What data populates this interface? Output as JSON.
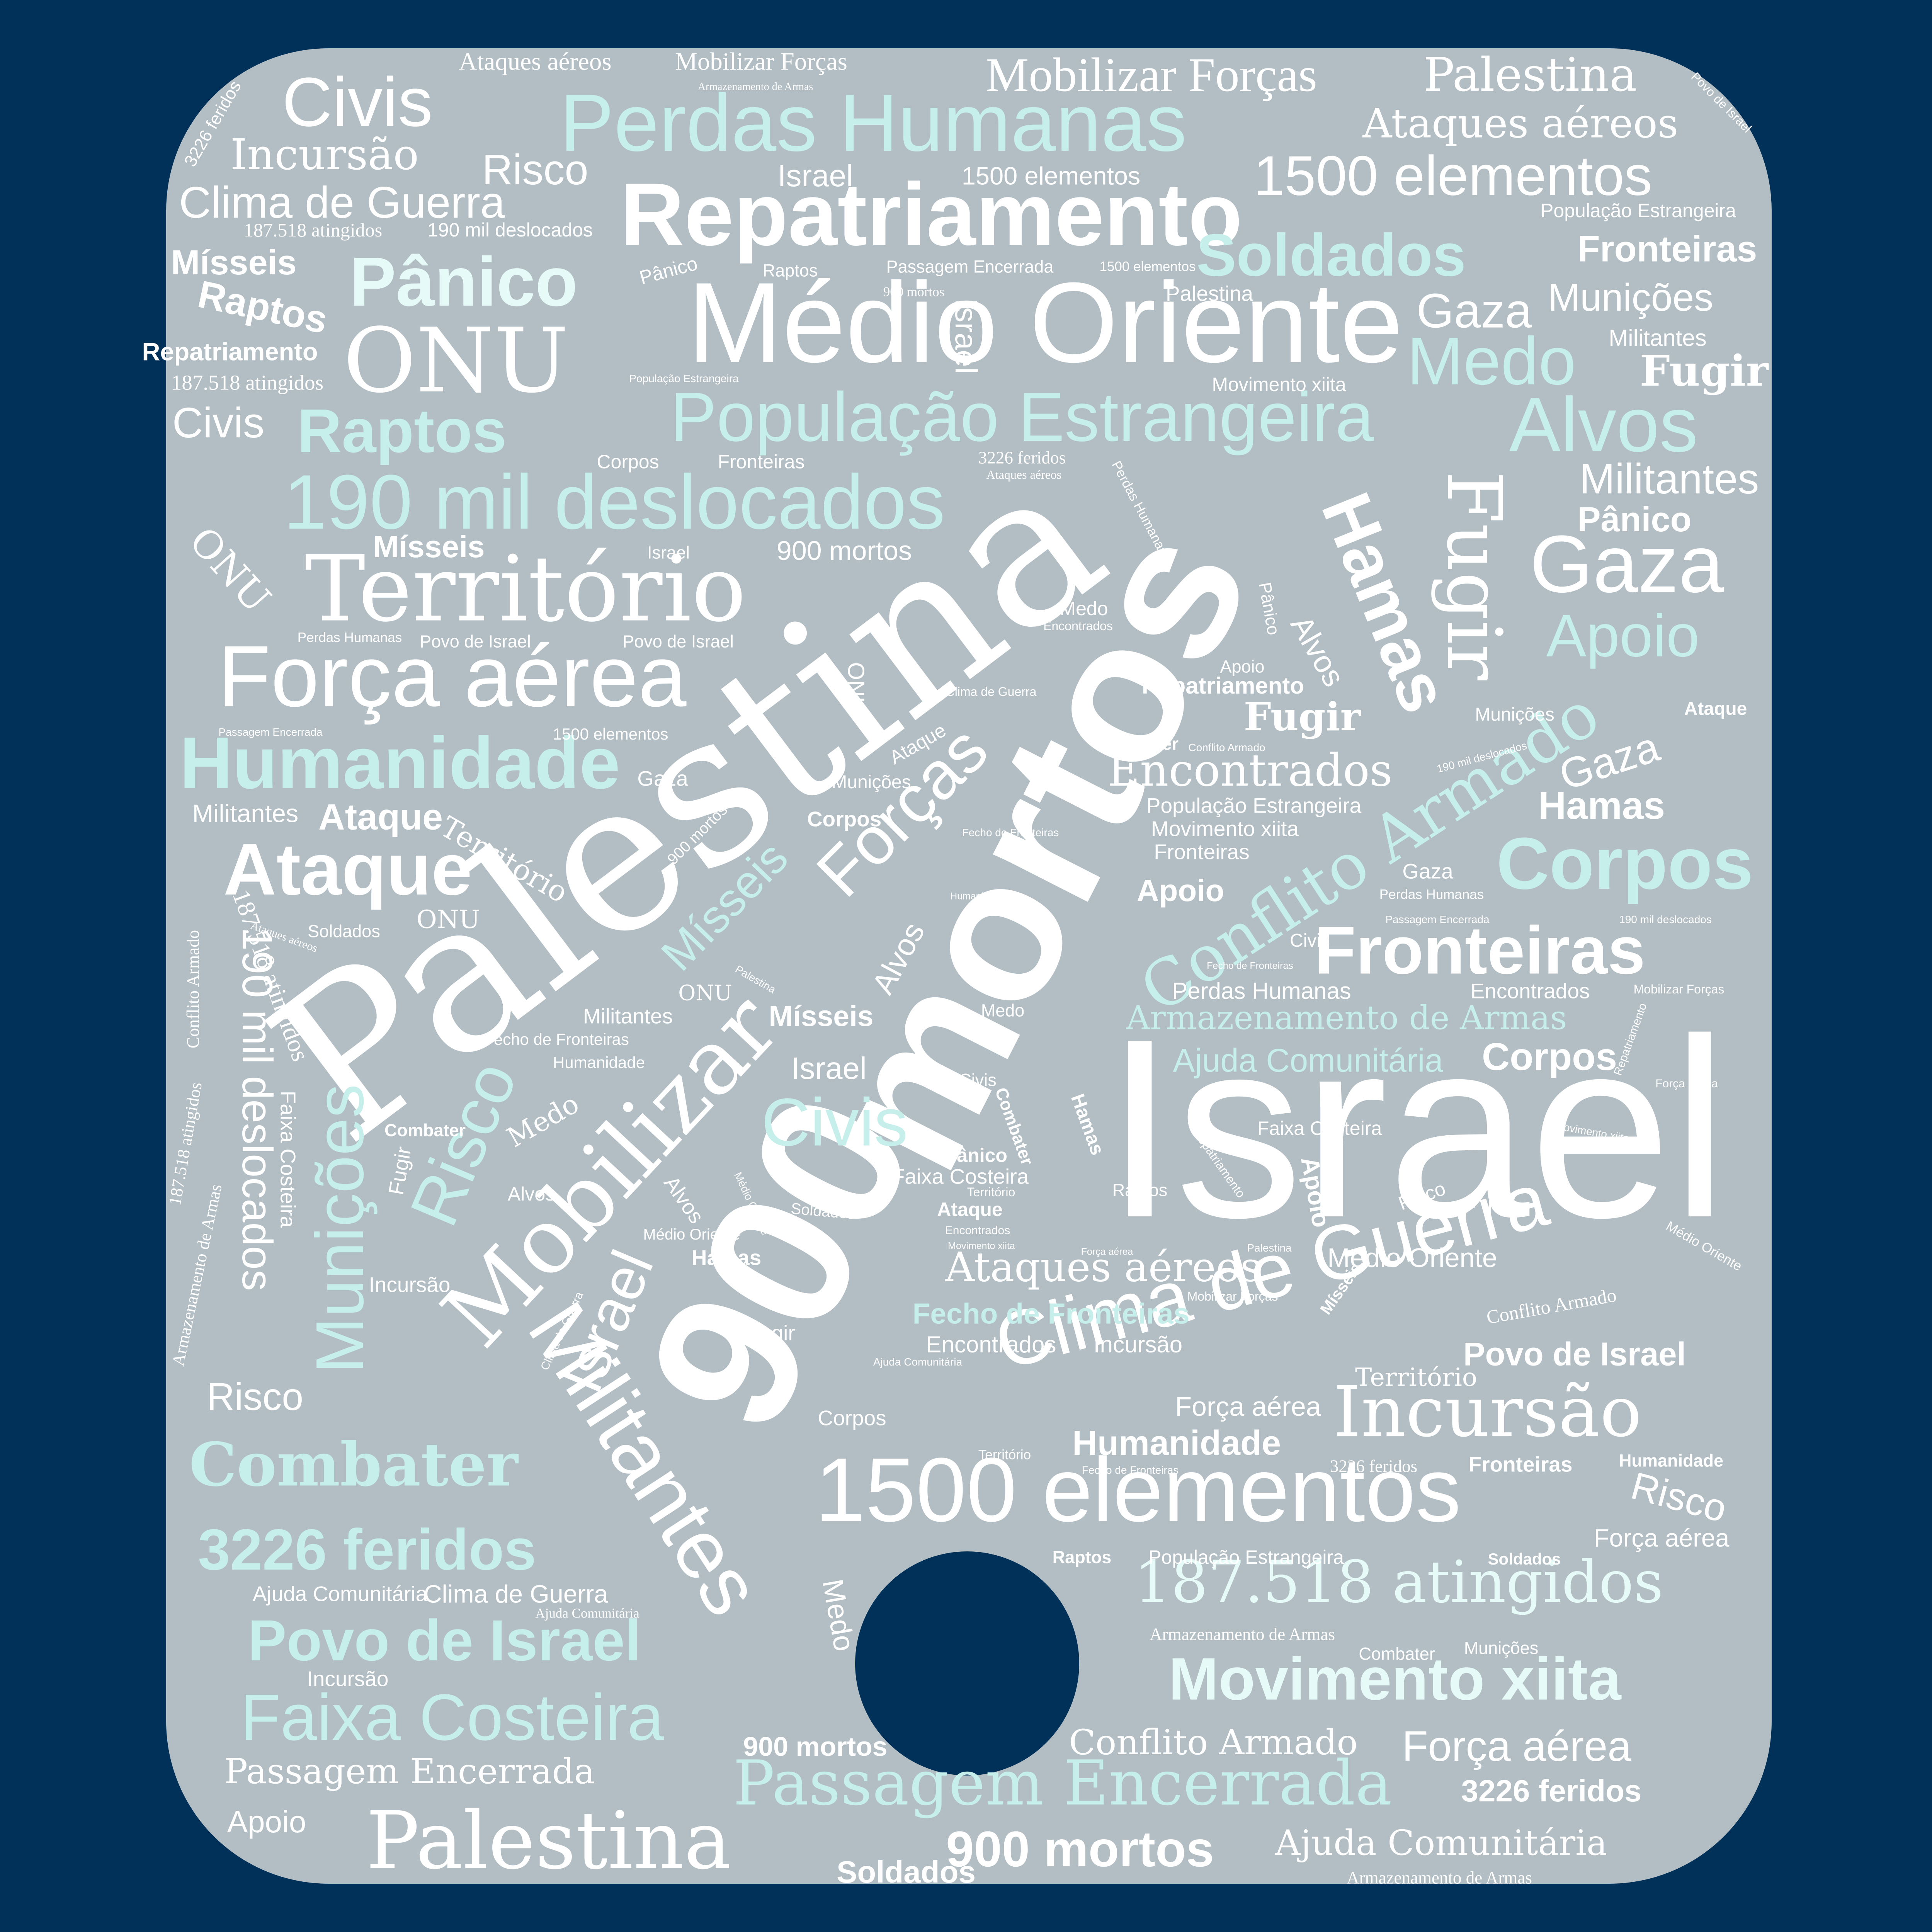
{
  "colors": {
    "background": "#013059",
    "card": "#b2bec3",
    "word_white": "#ffffff",
    "word_mint": "#c6eeea"
  },
  "words": {
    "israel_big": "Israel",
    "palestina_big": "Palestina",
    "mortos_big": "mortos",
    "nine_hundred_big": "900",
    "medio_oriente_big": "Médio Oriente",
    "repatriamento_big": "Repatriamento",
    "perdas_humanas_big": "Perdas Humanas",
    "populacao_estrangeira_big": "População Estrangeira",
    "territorio_big": "Território",
    "forca_aerea_big": "Força aérea",
    "deslocados_big": "190 mil deslocados",
    "mobilizar_big": "Mobilizar",
    "militantes_big": "Militantes",
    "clima_de_guerra_big": "Clima de Guerra",
    "elementos_big": "1500 elementos",
    "incursao_big": "Incursão",
    "movimento_xiita_big": "Movimento xiita",
    "atingidos_big": "187.518 atingidos",
    "passagem_big": "Passagem Encerrada",
    "faixa_costeira_big": "Faixa Costeira",
    "palestina_bottom": "Palestina",
    "conflito_armado_big": "Conflito Armado",
    "fugir_big": "Fugir",
    "hamas_big": "Hamas",
    "forcas_big": "Forças",
    "misseis_big": "Mísseis",
    "municoes_big": "Munições",
    "risco_big": "Risco",
    "israel_rot": "Israel",
    "mobilizar_forcas_top": "Mobilizar Forças",
    "palestina_top": "Palestina",
    "ataques_aereos_top": "Ataques aéreos",
    "civis_top": "Civis",
    "incursao_top": "Incursão",
    "risco_top": "Risco",
    "clima_top": "Clima de Guerra",
    "atingidos_top": "187.518 atingidos",
    "deslocados_top": "190 mil deslocados",
    "elementos_top": "1500 elementos",
    "soldados": "Soldados",
    "fronteiras": "Fronteiras",
    "populacao_small": "População Estrangeira",
    "municoes": "Munições",
    "militantes_small": "Militantes",
    "medo": "Medo",
    "fugir_right": "Fugir",
    "alvos": "Alvos",
    "militantes_right": "Militantes",
    "panico_right": "Pânico",
    "gaza_big": "Gaza",
    "apoio_right": "Apoio",
    "gaza_top": "Gaza",
    "onu_big": "ONU",
    "panico_big": "Pânico",
    "raptos_big": "Raptos",
    "misseis_left": "Mísseis",
    "raptos_left": "Raptos",
    "repatriamento_small": "Repatriamento",
    "atingidos_left": "187.518 atingidos",
    "civis_left": "Civis",
    "humanidade": "Humanidade",
    "ataque_big": "Ataque",
    "ataque_small": "Ataque",
    "corpos_big": "Corpos",
    "fronteiras_big": "Fronteiras",
    "encontrados": "Encontrados",
    "armazenamento": "Armazenamento de Armas",
    "ajuda": "Ajuda Comunitária",
    "corpos_mid": "Corpos",
    "combater_big": "Combater",
    "feridos_big": "3226 feridos",
    "povo_big": "Povo de Israel",
    "forca_aerea_low": "Força aérea",
    "conflito_low": "Conflito Armado",
    "passagem_low": "Passagem Encerrada",
    "mortos_low": "900 mortos",
    "ajuda_low": "Ajuda Comunitária",
    "feridos_low": "3226 feridos",
    "apoio_low": "Apoio",
    "soldados_low": "Soldados",
    "ataques_aereos_mid": "Ataques aéreos",
    "fecho_mid": "Fecho de Fronteiras",
    "povo_right": "Povo de Israel",
    "incursao_mid": "Incursão",
    "encontrados_mid": "Encontrados",
    "medio_oriente_mid": "Médio Oriente",
    "territorio_mid": "Território",
    "humanidade_mid": "Humanidade",
    "forca_aerea_mid": "Força aérea",
    "risco_left": "Risco",
    "clima_low": "Clima de Guerra",
    "ajuda_tiny": "Ajuda Comunitária",
    "incursao_low": "Incursão",
    "apoio_rot": "Apoio",
    "fugir_mid": "Fugir",
    "hamas_low": "Hamas",
    "ataque_low": "Ataque",
    "militantes_mid": "Militantes",
    "misseis_mid": "Mísseis",
    "israel_mid": "Israel",
    "civis_mid": "Civis",
    "onu_mid": "ONU",
    "medo_mid": "Medo",
    "raptos_mid": "Raptos",
    "panico_mid": "Pânico",
    "faixa_mid": "Faixa Costeira",
    "corpos_low": "Corpos",
    "fugir_low": "Fugir",
    "mortos_tiny": "900 mortos",
    "israel_small": "Israel",
    "gaza_mid": "Gaza",
    "apoio_mid": "Apoio",
    "corpos_small": "Corpos",
    "fronteiras_small": "Fronteiras",
    "movimento_small": "Movimento xiita",
    "populacao_mid": "População Estrangeira",
    "encontrados_small": "Encontrados",
    "repatriamento_mid": "Repatriamento",
    "combater_mid": "Combater",
    "conflito_tiny": "Conflito Armado",
    "mortos_mid": "900 mortos",
    "israel_tiny": "Israel",
    "onu_tiny": "ONU",
    "perdas_tiny": "Perdas Humanas",
    "povo_tiny": "Povo de Israel",
    "povo_tiny2": "Povo de Israel",
    "misseis_small": "Mísseis",
    "corpos_tiny": "Corpos",
    "fronteiras_tiny": "Fronteiras",
    "ataques_tiny": "Ataques aéreos",
    "feridos_tiny": "3226 feridos",
    "perdas_small": "Perdas Humanas",
    "civis_small": "Civis",
    "gaza_small": "Gaza",
    "encontrados_right": "Encontrados",
    "mobilizar_tiny": "Mobilizar Forças",
    "deslocados_tiny": "190 mil deslocados",
    "passagem_tiny": "Passagem Encerrada",
    "perdas_right": "Perdas Humanas",
    "humanidade_tiny": "Humanidade",
    "medo_small": "Medo",
    "civis_tiny": "Civis",
    "combater_small": "Combater",
    "panico_small": "Pânico",
    "faixa_small": "Faixa Costeira",
    "territorio_small": "Território",
    "ataque_tiny": "Ataque",
    "encontrados_tiny": "Encontrados",
    "movimento_tiny": "Movimento xiita",
    "forca_aerea_tiny": "Força aérea",
    "palestina_tiny": "Palestina",
    "mobilizar_small": "Mobilizar Forças",
    "medio_tiny": "Médio Oriente",
    "soldados_mid": "Soldados",
    "alvos_small": "Alvos",
    "alvos_tiny": "Alvos",
    "incursao_tiny": "Incursão",
    "fugir_tiny": "Fugir",
    "raptos_tiny": "Raptos",
    "soldados_tiny": "Soldados",
    "populacao_tiny": "População Estrangeira",
    "armazenamento_tiny": "Armazenamento de Armas",
    "combater_tiny": "Combater",
    "municoes_tiny": "Munições",
    "humanidade_right": "Humanidade",
    "forca_aerea_right": "Força aérea",
    "fronteiras_right": "Fronteiras",
    "feridos_right": "3226 feridos",
    "territorio_tiny": "Território",
    "fecho_tiny": "Fecho de Fronteiras",
    "ajuda_bottom": "Ajuda Comunitária",
    "armazenamento_bottom": "Armazenamento de Armas",
    "mortos_bottom": "900 mortos",
    "soldados_bottom": "Soldados",
    "apoio_bottom": "Apoio"
  }
}
